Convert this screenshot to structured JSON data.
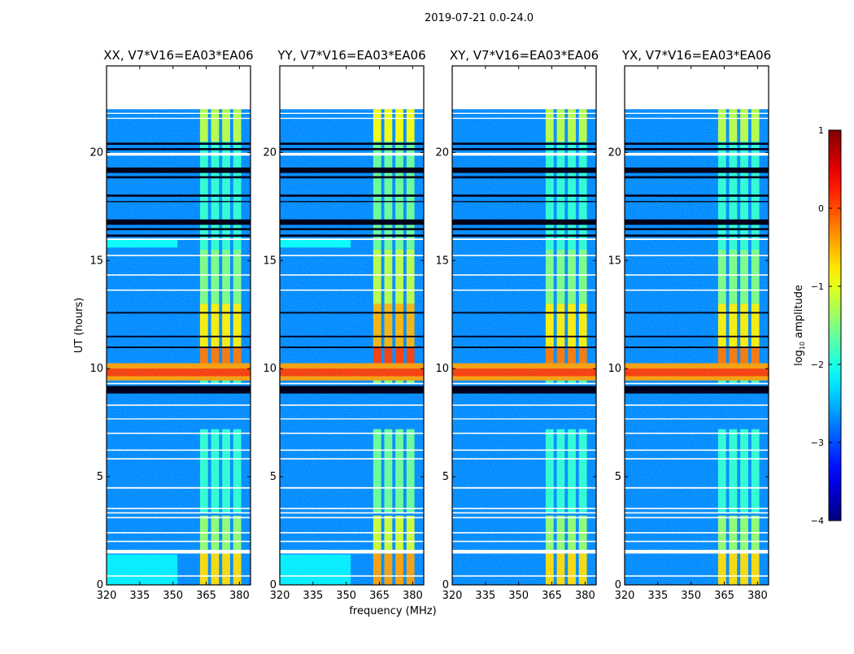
{
  "chart_data": {
    "type": "heatmap",
    "title": "2019-07-21 0.0-24.0",
    "xlabel": "frequency (MHz)",
    "ylabel": "UT (hours)",
    "xlim": [
      320,
      385
    ],
    "ylim": [
      0,
      24
    ],
    "xticks": [
      "320",
      "335",
      "350",
      "365",
      "380"
    ],
    "xtick_values": [
      320,
      335,
      350,
      365,
      380
    ],
    "yticks": [
      "0",
      "5",
      "10",
      "15",
      "20"
    ],
    "ytick_values": [
      0,
      5,
      10,
      15,
      20
    ],
    "colormap": "jet",
    "colorbar": {
      "label_main": "log",
      "label_sub": "10",
      "label_rest": " amplitude",
      "range": [
        -4,
        1
      ],
      "ticks": [
        "1",
        "0",
        "−1",
        "−2",
        "−3",
        "−4"
      ],
      "tick_values": [
        1,
        0,
        -1,
        -2,
        -3,
        -4
      ]
    },
    "background_level": -2.7,
    "no_data_hours": [
      22,
      24
    ],
    "rfi_channels_mhz": [
      364,
      369,
      374,
      379
    ],
    "rfi_channel_width_mhz": 3.6,
    "rfi_segments": [
      [
        0,
        1.45,
        -0.7
      ],
      [
        1.6,
        3.2,
        -1.4
      ],
      [
        3.3,
        7.2,
        -1.9
      ],
      [
        9.3,
        9.5,
        -1.8
      ],
      [
        10.2,
        11,
        -0.2
      ],
      [
        11,
        13,
        -0.8
      ],
      [
        13,
        15.5,
        -1.5
      ],
      [
        15.5,
        20.5,
        -1.9
      ],
      [
        20.5,
        22,
        -1.2
      ]
    ],
    "event_bands": [
      [
        9.45,
        10.25,
        -0.4
      ],
      [
        9.65,
        10.0,
        0.1
      ]
    ],
    "dark_rows": [
      [
        8.85,
        9.2
      ],
      [
        10.95,
        11.02
      ],
      [
        11.45,
        11.52
      ],
      [
        12.55,
        12.62
      ],
      [
        16.1,
        16.2
      ],
      [
        16.4,
        16.5
      ],
      [
        16.65,
        16.9
      ],
      [
        17.7,
        17.75
      ],
      [
        17.95,
        18.05
      ],
      [
        18.8,
        18.9
      ],
      [
        19.05,
        19.3
      ],
      [
        20.1,
        20.2
      ],
      [
        20.35,
        20.45
      ]
    ],
    "flagged_rows": [
      [
        0.38,
        0.44
      ],
      [
        1.45,
        1.62
      ],
      [
        1.98,
        2.04
      ],
      [
        2.38,
        2.44
      ],
      [
        3.08,
        3.14
      ],
      [
        3.3,
        3.36
      ],
      [
        3.5,
        3.56
      ],
      [
        4.45,
        4.52
      ],
      [
        5.8,
        5.86
      ],
      [
        6.2,
        6.26
      ],
      [
        6.98,
        7.04
      ],
      [
        7.65,
        7.7
      ],
      [
        8.28,
        8.34
      ],
      [
        9.28,
        9.34
      ],
      [
        13.6,
        13.66
      ],
      [
        14.3,
        14.36
      ],
      [
        15.2,
        15.26
      ],
      [
        15.95,
        16.02
      ],
      [
        19.85,
        19.98
      ],
      [
        21.55,
        21.6
      ],
      [
        21.78,
        21.83
      ]
    ],
    "panels": [
      {
        "title": "XX, V7*V16=EA03*EA06",
        "low_freq_glow": [
          [
            0,
            1.4,
            -2.2
          ],
          [
            15.6,
            15.95,
            -2.1
          ]
        ],
        "rfi_offset": 0
      },
      {
        "title": "YY, V7*V16=EA03*EA06",
        "low_freq_glow": [
          [
            0,
            1.4,
            -2.2
          ],
          [
            15.6,
            15.95,
            -2.1
          ]
        ],
        "rfi_offset": 0.3
      },
      {
        "title": "XY, V7*V16=EA03*EA06",
        "low_freq_glow": [],
        "rfi_offset": 0
      },
      {
        "title": "YX, V7*V16=EA03*EA06",
        "low_freq_glow": [],
        "rfi_offset": 0
      }
    ]
  }
}
